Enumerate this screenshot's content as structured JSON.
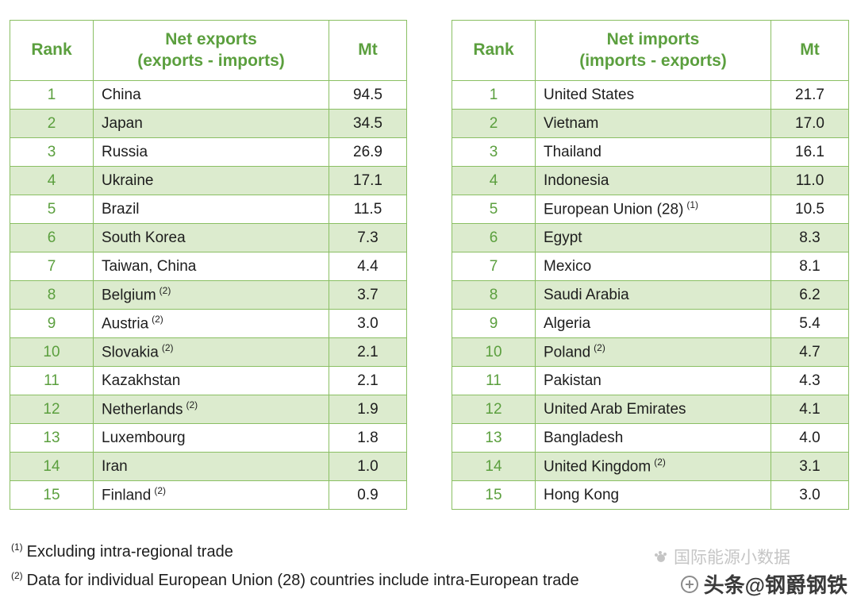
{
  "colors": {
    "green": "#5b9f3e",
    "border": "#8abf63",
    "row_alt": "#dcebce"
  },
  "chart_data": [
    {
      "type": "table",
      "title": "Net exports",
      "subtitle": "(exports - imports)",
      "columns": {
        "rank": "Rank",
        "unit": "Mt"
      },
      "rows": [
        {
          "rank": "1",
          "country": "China",
          "sup": "",
          "value": "94.5"
        },
        {
          "rank": "2",
          "country": "Japan",
          "sup": "",
          "value": "34.5"
        },
        {
          "rank": "3",
          "country": "Russia",
          "sup": "",
          "value": "26.9"
        },
        {
          "rank": "4",
          "country": "Ukraine",
          "sup": "",
          "value": "17.1"
        },
        {
          "rank": "5",
          "country": "Brazil",
          "sup": "",
          "value": "11.5"
        },
        {
          "rank": "6",
          "country": "South Korea",
          "sup": "",
          "value": "7.3"
        },
        {
          "rank": "7",
          "country": "Taiwan, China",
          "sup": "",
          "value": "4.4"
        },
        {
          "rank": "8",
          "country": "Belgium",
          "sup": "(2)",
          "value": "3.7"
        },
        {
          "rank": "9",
          "country": "Austria",
          "sup": "(2)",
          "value": "3.0"
        },
        {
          "rank": "10",
          "country": "Slovakia",
          "sup": "(2)",
          "value": "2.1"
        },
        {
          "rank": "11",
          "country": "Kazakhstan",
          "sup": "",
          "value": "2.1"
        },
        {
          "rank": "12",
          "country": "Netherlands",
          "sup": "(2)",
          "value": "1.9"
        },
        {
          "rank": "13",
          "country": "Luxembourg",
          "sup": "",
          "value": "1.8"
        },
        {
          "rank": "14",
          "country": "Iran",
          "sup": "",
          "value": "1.0"
        },
        {
          "rank": "15",
          "country": "Finland",
          "sup": "(2)",
          "value": "0.9"
        }
      ]
    },
    {
      "type": "table",
      "title": "Net imports",
      "subtitle": "(imports - exports)",
      "columns": {
        "rank": "Rank",
        "unit": "Mt"
      },
      "rows": [
        {
          "rank": "1",
          "country": "United States",
          "sup": "",
          "value": "21.7"
        },
        {
          "rank": "2",
          "country": "Vietnam",
          "sup": "",
          "value": "17.0"
        },
        {
          "rank": "3",
          "country": "Thailand",
          "sup": "",
          "value": "16.1"
        },
        {
          "rank": "4",
          "country": "Indonesia",
          "sup": "",
          "value": "11.0"
        },
        {
          "rank": "5",
          "country": "European Union (28)",
          "sup": "(1)",
          "value": "10.5"
        },
        {
          "rank": "6",
          "country": "Egypt",
          "sup": "",
          "value": "8.3"
        },
        {
          "rank": "7",
          "country": "Mexico",
          "sup": "",
          "value": "8.1"
        },
        {
          "rank": "8",
          "country": "Saudi Arabia",
          "sup": "",
          "value": "6.2"
        },
        {
          "rank": "9",
          "country": "Algeria",
          "sup": "",
          "value": "5.4"
        },
        {
          "rank": "10",
          "country": "Poland",
          "sup": "(2)",
          "value": "4.7"
        },
        {
          "rank": "11",
          "country": "Pakistan",
          "sup": "",
          "value": "4.3"
        },
        {
          "rank": "12",
          "country": "United Arab Emirates",
          "sup": "",
          "value": "4.1"
        },
        {
          "rank": "13",
          "country": "Bangladesh",
          "sup": "",
          "value": "4.0"
        },
        {
          "rank": "14",
          "country": "United Kingdom",
          "sup": "(2)",
          "value": "3.1"
        },
        {
          "rank": "15",
          "country": "Hong Kong",
          "sup": "",
          "value": "3.0"
        }
      ]
    }
  ],
  "footnotes": [
    {
      "sup": "(1)",
      "text": "Excluding intra-regional trade"
    },
    {
      "sup": "(2)",
      "text": "Data for individual European Union (28) countries include intra-European trade"
    }
  ],
  "watermark": {
    "faded": "国际能源小数据",
    "main": "头条@钢爵钢铁"
  }
}
